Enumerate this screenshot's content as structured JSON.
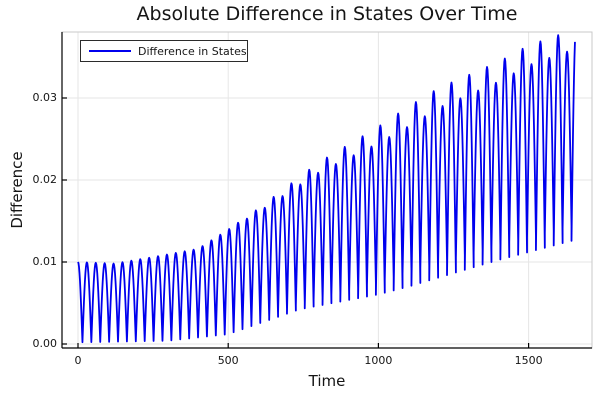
{
  "title": "Absolute Difference in States Over Time",
  "legend": {
    "label": "Difference in States"
  },
  "axes": {
    "xlabel": "Time",
    "ylabel": "Difference",
    "x_tick_labels": [
      "0",
      "500",
      "1000",
      "1500"
    ],
    "y_tick_labels": [
      "0.00",
      "0.01",
      "0.02",
      "0.03"
    ]
  },
  "colors": {
    "line": "#0000ee",
    "grid": "#e6e6e6",
    "frame": "#c9c9c9",
    "spine": "#000000",
    "text": "#151515",
    "background": "#ffffff"
  },
  "chart_data": {
    "type": "line",
    "title": "Absolute Difference in States Over Time",
    "xlabel": "Time",
    "ylabel": "Difference",
    "series": [
      {
        "name": "Difference in States",
        "color": "#0000ee"
      }
    ],
    "legend_position": "top-left",
    "grid": true,
    "x_tick_values": [
      0,
      500,
      1000,
      1500
    ],
    "y_tick_values": [
      0,
      0.01,
      0.02,
      0.03
    ],
    "xlim": [
      -53,
      1711
    ],
    "ylim": [
      -0.0005,
      0.0379
    ],
    "t_start": 0,
    "t_end": 1655,
    "start_value": 0.01,
    "oscillation_period": 29.6,
    "peak_at_t0": true,
    "approx_num_oscillations": 56,
    "upper_envelope_keyframes": [
      [
        0,
        0.01
      ],
      [
        120,
        0.0098
      ],
      [
        250,
        0.0106
      ],
      [
        400,
        0.0116
      ],
      [
        600,
        0.0163
      ],
      [
        800,
        0.0215
      ],
      [
        1000,
        0.0255
      ],
      [
        1200,
        0.03
      ],
      [
        1400,
        0.0332
      ],
      [
        1500,
        0.0352
      ],
      [
        1655,
        0.0372
      ]
    ],
    "lower_envelope_keyframes": [
      [
        0,
        0.0002
      ],
      [
        300,
        0.0004
      ],
      [
        500,
        0.0012
      ],
      [
        739,
        0.0046
      ],
      [
        1000,
        0.0068
      ],
      [
        1200,
        0.009
      ],
      [
        1405,
        0.0112
      ],
      [
        1655,
        0.0136
      ]
    ],
    "beat_jitter": {
      "start_t": 500,
      "full_t": 1100,
      "peak_amp": 0.0012,
      "trough_amp": 0.0009
    }
  }
}
